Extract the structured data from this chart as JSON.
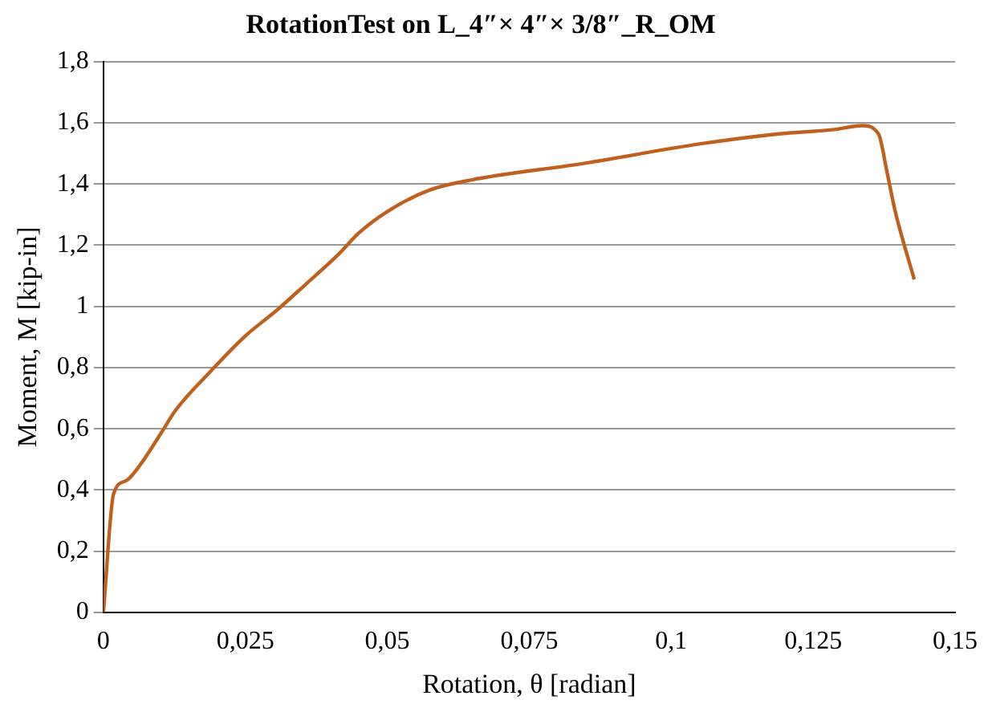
{
  "chart_data": {
    "type": "line",
    "title": "RotationTest on L_4″× 4″× 3/8″_R_OM",
    "xlabel": "Rotation, θ [radian]",
    "ylabel": "Moment, M [kip-in]",
    "x": [
      0,
      0.0018,
      0.004,
      0.0064,
      0.0103,
      0.0127,
      0.019,
      0.0248,
      0.0307,
      0.0355,
      0.0414,
      0.045,
      0.05,
      0.0574,
      0.0647,
      0.0841,
      0.1054,
      0.119,
      0.1287,
      0.1336,
      0.1365,
      0.138,
      0.1394,
      0.1428
    ],
    "series": [
      {
        "color": "#c0601f",
        "values": [
          0,
          0.387,
          0.43,
          0.48,
          0.59,
          0.66,
          0.79,
          0.9,
          0.99,
          1.07,
          1.17,
          1.24,
          1.31,
          1.38,
          1.413,
          1.466,
          1.532,
          1.564,
          1.578,
          1.591,
          1.564,
          1.44,
          1.315,
          1.088
        ]
      }
    ],
    "xlim": [
      0,
      0.15
    ],
    "ylim": [
      0,
      1.8
    ],
    "xticks": [
      0,
      {
        "value": 0.025,
        "label": "0,025"
      },
      {
        "value": 0.05,
        "label": "0,05"
      },
      {
        "value": 0.075,
        "label": "0,075"
      },
      {
        "value": 0.1,
        "label": "0,1"
      },
      {
        "value": 0.125,
        "label": "0,125"
      },
      {
        "value": 0.15,
        "label": "0,15"
      }
    ],
    "yticks": [
      0,
      {
        "value": 0.2,
        "label": "0,2"
      },
      {
        "value": 0.4,
        "label": "0,4"
      },
      {
        "value": 0.6,
        "label": "0,6"
      },
      {
        "value": 0.8,
        "label": "0,8"
      },
      1,
      {
        "value": 1.2,
        "label": "1,2"
      },
      {
        "value": 1.4,
        "label": "1,4"
      },
      {
        "value": 1.6,
        "label": "1,6"
      },
      {
        "value": 1.8,
        "label": "1,8"
      }
    ],
    "grid": "y",
    "legend": false,
    "marker": "none",
    "line_style": "solid"
  }
}
